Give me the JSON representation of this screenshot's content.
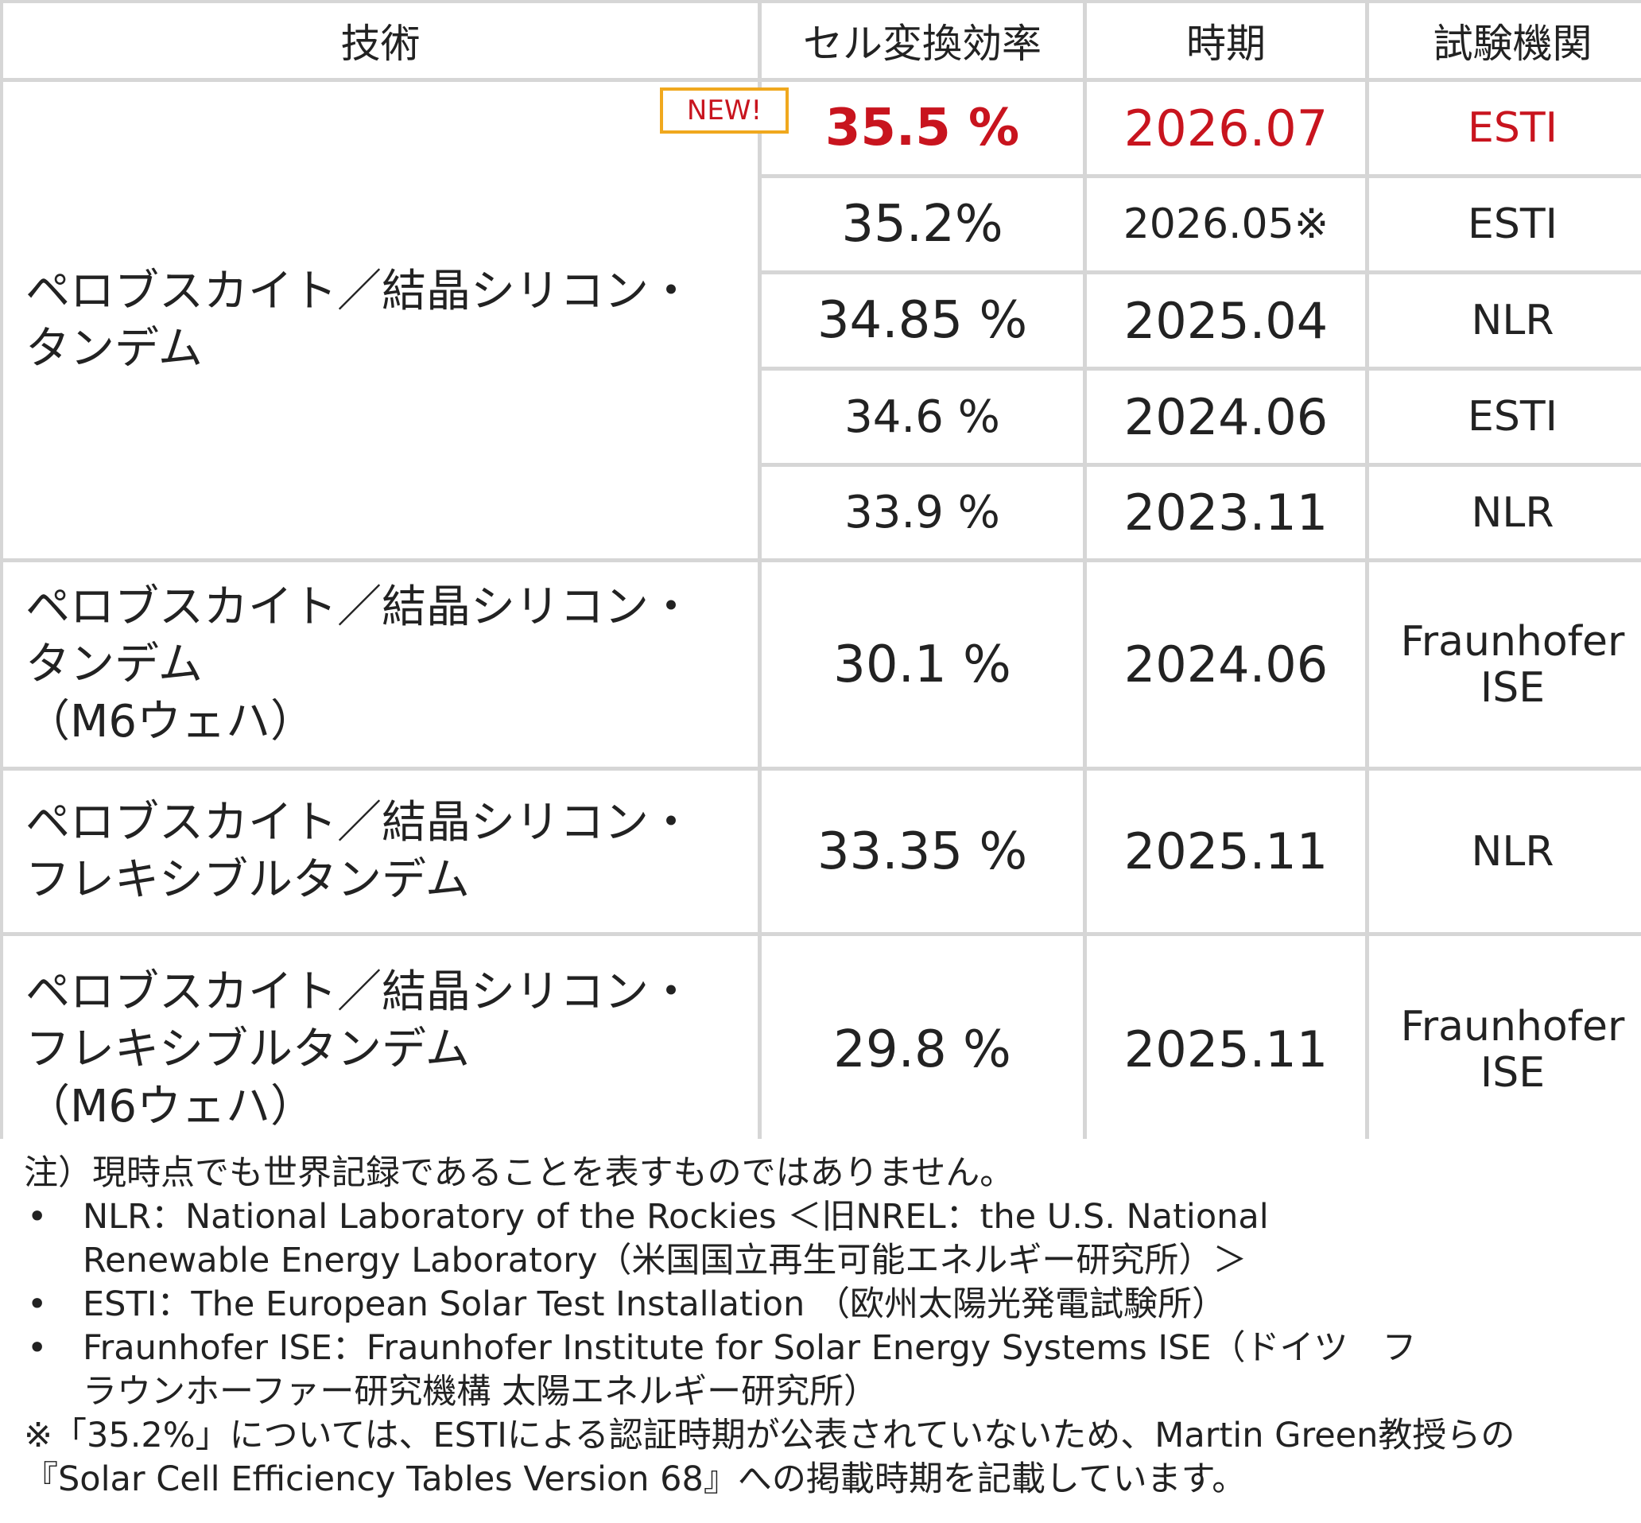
{
  "table": {
    "headers": [
      "技術",
      "セル変換効率",
      "時期",
      "試験機関"
    ],
    "new_badge": "NEW!",
    "groups": [
      {
        "technology_lines": [
          "ペロブスカイト／結晶シリコン・",
          "タンデム"
        ],
        "rows": [
          {
            "efficiency": "35.5 %",
            "date": "2026.07",
            "lab": "ESTI"
          },
          {
            "efficiency": "35.2%",
            "date": "2026.05※",
            "lab": "ESTI"
          },
          {
            "efficiency": "34.85 %",
            "date": "2025.04",
            "lab": "NLR"
          },
          {
            "efficiency": "34.6 %",
            "date": "2024.06",
            "lab": "ESTI"
          },
          {
            "efficiency": "33.9 %",
            "date": "2023.11",
            "lab": "NLR"
          }
        ]
      },
      {
        "technology_lines": [
          "ペロブスカイト／結晶シリコン・",
          "タンデム",
          "（M6ウェハ）"
        ],
        "rows": [
          {
            "efficiency": "30.1 %",
            "date": "2024.06",
            "lab_lines": [
              "Fraunhofer",
              "ISE"
            ]
          }
        ]
      },
      {
        "technology_lines": [
          "ペロブスカイト／結晶シリコン・",
          "フレキシブルタンデム"
        ],
        "rows": [
          {
            "efficiency": "33.35 %",
            "date": "2025.11",
            "lab": "NLR"
          }
        ]
      },
      {
        "technology_lines": [
          "ペロブスカイト／結晶シリコン・",
          "フレキシブルタンデム",
          "（M6ウェハ）"
        ],
        "rows": [
          {
            "efficiency": "29.8 %",
            "date": "2025.11",
            "lab_lines": [
              "Fraunhofer",
              "ISE"
            ]
          }
        ]
      }
    ]
  },
  "notes": {
    "note": "注）現時点でも世界記録であることを表すものではありません。",
    "bullet": "•",
    "bullets": [
      [
        "NLR：National Laboratory of the Rockies ＜旧NREL：the U.S. National",
        "Renewable Energy Laboratory（米国国立再生可能エネルギー研究所）＞"
      ],
      [
        "ESTI：The European Solar Test Installation （欧州太陽光発電試験所）"
      ],
      [
        "Fraunhofer ISE：Fraunhofer Institute for Solar Energy Systems ISE（ドイツ　フ",
        "ラウンホーファー研究機構 太陽エネルギー研究所）"
      ]
    ],
    "footnote_lines": [
      "※「35.2%」については、ESTIによる認証時期が公表されていないため、Martin Green教授らの",
      "『Solar Cell Efficiency Tables Version 68』への掲載時期を記載しています。"
    ]
  },
  "colors": {
    "highlight_red": "#c8141e",
    "badge_border": "#f0a81e",
    "grid_line": "#d6d6d6"
  }
}
